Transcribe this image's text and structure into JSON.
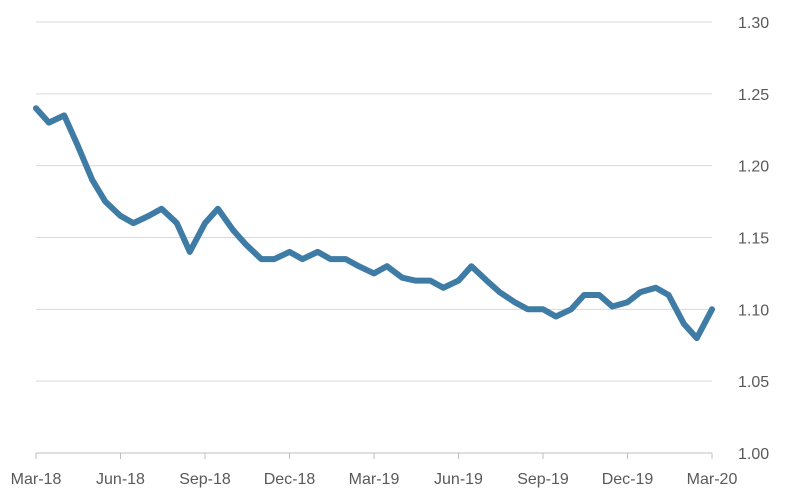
{
  "chart_data": {
    "type": "line",
    "title": "",
    "xlabel": "",
    "ylabel": "",
    "x_ticks": [
      "Mar-18",
      "Jun-18",
      "Sep-18",
      "Dec-18",
      "Mar-19",
      "Jun-19",
      "Sep-19",
      "Dec-19",
      "Mar-20"
    ],
    "y_ticks": [
      "1.30",
      "1.25",
      "1.20",
      "1.15",
      "1.10",
      "1.05",
      "1.00"
    ],
    "ylim": [
      1.0,
      1.3
    ],
    "xlim": [
      "2018-03",
      "2020-03"
    ],
    "y_axis_position": "right",
    "grid": true,
    "colors": {
      "series": "#3f7ca5",
      "grid": "#d9d9d9",
      "axis": "#bfbfbf",
      "text": "#595959"
    },
    "series": [
      {
        "x": [
          "2018-03-01",
          "2018-03-15",
          "2018-04-01",
          "2018-04-15",
          "2018-05-01",
          "2018-05-15",
          "2018-06-01",
          "2018-06-15",
          "2018-07-01",
          "2018-07-15",
          "2018-08-01",
          "2018-08-15",
          "2018-09-01",
          "2018-09-15",
          "2018-10-01",
          "2018-10-15",
          "2018-11-01",
          "2018-11-15",
          "2018-12-01",
          "2018-12-15",
          "2019-01-01",
          "2019-01-15",
          "2019-02-01",
          "2019-02-15",
          "2019-03-01",
          "2019-03-15",
          "2019-04-01",
          "2019-04-15",
          "2019-05-01",
          "2019-05-15",
          "2019-06-01",
          "2019-06-15",
          "2019-07-01",
          "2019-07-15",
          "2019-08-01",
          "2019-08-15",
          "2019-09-01",
          "2019-09-15",
          "2019-10-01",
          "2019-10-15",
          "2019-11-01",
          "2019-11-15",
          "2019-12-01",
          "2019-12-15",
          "2020-01-01",
          "2020-01-15",
          "2020-02-01",
          "2020-02-15",
          "2020-03-01"
        ],
        "values": [
          1.24,
          1.23,
          1.235,
          1.215,
          1.19,
          1.175,
          1.165,
          1.16,
          1.165,
          1.17,
          1.16,
          1.14,
          1.16,
          1.17,
          1.155,
          1.145,
          1.135,
          1.135,
          1.14,
          1.135,
          1.14,
          1.135,
          1.135,
          1.13,
          1.125,
          1.13,
          1.122,
          1.12,
          1.12,
          1.115,
          1.12,
          1.13,
          1.12,
          1.112,
          1.105,
          1.1,
          1.1,
          1.095,
          1.1,
          1.11,
          1.11,
          1.102,
          1.105,
          1.112,
          1.115,
          1.11,
          1.09,
          1.08,
          1.1
        ]
      }
    ]
  }
}
